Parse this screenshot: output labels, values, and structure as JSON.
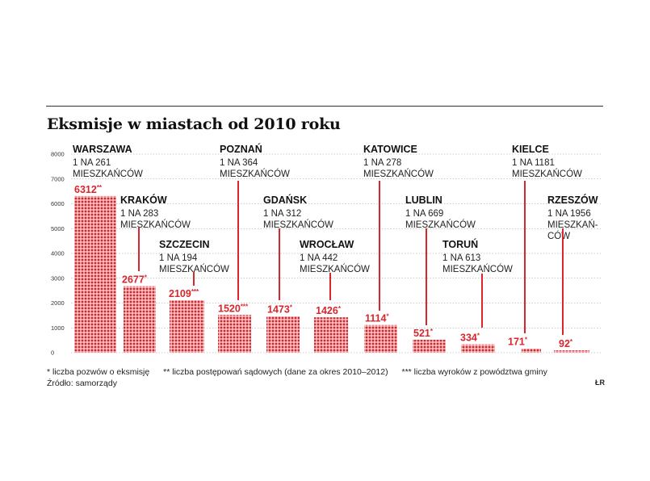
{
  "chart_data": {
    "type": "bar",
    "title": "Eksmisje w miastach od 2010 roku",
    "ylim": [
      0,
      8000
    ],
    "yticks": [
      0,
      1000,
      2000,
      3000,
      4000,
      5000,
      6000,
      7000,
      8000
    ],
    "categories": [
      "WARSZAWA",
      "KRAKÓW",
      "SZCZECIN",
      "POZNAŃ",
      "GDAŃSK",
      "WROCŁAW",
      "KATOWICE",
      "LUBLIN",
      "TORUŃ",
      "KIELCE",
      "RZESZÓW"
    ],
    "values": [
      6312,
      2677,
      2109,
      1520,
      1473,
      1426,
      1114,
      521,
      334,
      171,
      92
    ],
    "value_labels": [
      "6312**",
      "2677*",
      "2109***",
      "1520***",
      "1473*",
      "1426*",
      "1114*",
      "521*",
      "334*",
      "171*",
      "92*"
    ],
    "ratio_labels": [
      [
        "1 NA 261",
        "MIESZKAŃCÓW"
      ],
      [
        "1 NA 283",
        "MIESZKAŃCÓW"
      ],
      [
        "1 NA 194",
        "MIESZKAŃCÓW"
      ],
      [
        "1 NA 364",
        "MIESZKAŃCÓW"
      ],
      [
        "1 NA 312",
        "MIESZKAŃCÓW"
      ],
      [
        "1 NA 442",
        "MIESZKAŃCÓW"
      ],
      [
        "1 NA 278",
        "MIESZKAŃCÓW"
      ],
      [
        "1 NA 669",
        "MIESZKAŃCÓW"
      ],
      [
        "1 NA 613",
        "MIESZKAŃCÓW"
      ],
      [
        "1 NA 1181",
        "MIESZKAŃCÓW"
      ],
      [
        "1 NA 1956",
        "MIESZKAŃ-",
        "CÓW"
      ]
    ],
    "bar_color": "#d9262c"
  },
  "footnotes": {
    "n1": "* liczba pozwów o eksmisję",
    "n2": "** liczba postępowań sądowych (dane za okres 2010–2012)",
    "n3": "*** liczba wyroków z powództwa gminy",
    "source": "Źródło: samorządy",
    "initials": "ŁR"
  }
}
